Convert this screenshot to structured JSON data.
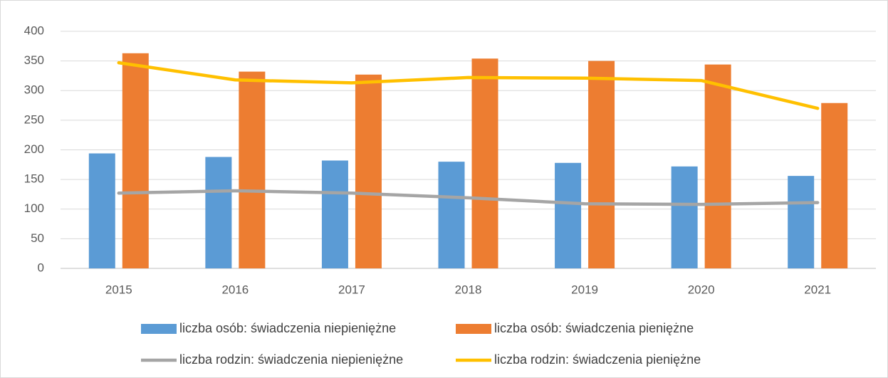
{
  "chart_data": {
    "type": "bar",
    "categories": [
      "2015",
      "2016",
      "2017",
      "2018",
      "2019",
      "2020",
      "2021"
    ],
    "series": [
      {
        "name": "liczba osób: świadczenia niepieniężne",
        "type": "bar",
        "color": "#5b9bd5",
        "values": [
          194,
          188,
          182,
          180,
          178,
          172,
          156
        ]
      },
      {
        "name": "liczba osób: świadczenia pieniężne",
        "type": "bar",
        "color": "#ed7d31",
        "values": [
          363,
          332,
          327,
          354,
          350,
          344,
          279
        ]
      },
      {
        "name": "liczba rodzin: świadczenia niepieniężne",
        "type": "line",
        "color": "#a5a5a5",
        "values": [
          127,
          131,
          127,
          119,
          109,
          108,
          111
        ]
      },
      {
        "name": "liczba rodzin: świadczenia pieniężne",
        "type": "line",
        "color": "#ffc000",
        "values": [
          347,
          318,
          313,
          322,
          321,
          317,
          270
        ]
      }
    ],
    "ylim": [
      0,
      400
    ],
    "yticks": [
      0,
      50,
      100,
      150,
      200,
      250,
      300,
      350,
      400
    ],
    "grid": true,
    "legend": "bottom"
  }
}
